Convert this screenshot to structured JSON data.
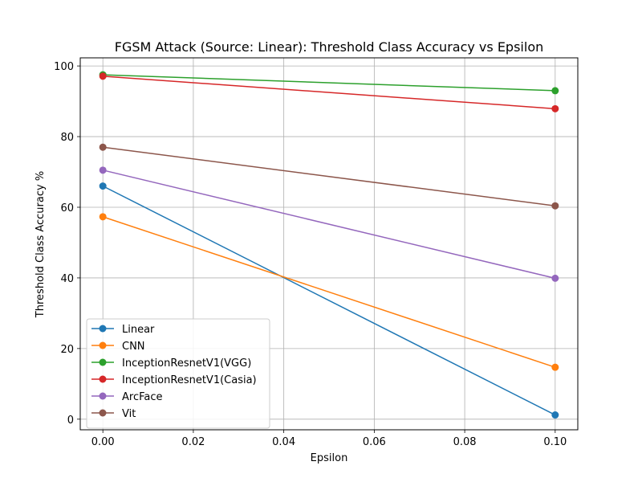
{
  "chart_data": {
    "type": "line",
    "title": "FGSM Attack (Source: Linear): Threshold Class Accuracy vs Epsilon",
    "xlabel": "Epsilon",
    "ylabel": "Threshold Class Accuracy %",
    "x": [
      0.0,
      0.1
    ],
    "xlim": [
      -0.005,
      0.105
    ],
    "ylim": [
      -3.0,
      102.3
    ],
    "xticks": [
      0.0,
      0.02,
      0.04,
      0.06,
      0.08,
      0.1
    ],
    "xtick_labels": [
      "0.00",
      "0.02",
      "0.04",
      "0.06",
      "0.08",
      "0.10"
    ],
    "yticks": [
      0,
      20,
      40,
      60,
      80,
      100
    ],
    "ytick_labels": [
      "0",
      "20",
      "40",
      "60",
      "80",
      "100"
    ],
    "grid": true,
    "legend_position": "lower-left",
    "series": [
      {
        "name": "Linear",
        "color": "#1f77b4",
        "values": [
          66.0,
          1.2
        ]
      },
      {
        "name": "CNN",
        "color": "#ff7f0e",
        "values": [
          57.3,
          14.7
        ]
      },
      {
        "name": "InceptionResnetV1(VGG)",
        "color": "#2ca02c",
        "values": [
          97.5,
          93.0
        ]
      },
      {
        "name": "InceptionResnetV1(Casia)",
        "color": "#d62728",
        "values": [
          97.1,
          87.9
        ]
      },
      {
        "name": "ArcFace",
        "color": "#9467bd",
        "values": [
          70.5,
          39.9
        ]
      },
      {
        "name": "Vit",
        "color": "#8c564b",
        "values": [
          77.0,
          60.4
        ]
      }
    ]
  }
}
